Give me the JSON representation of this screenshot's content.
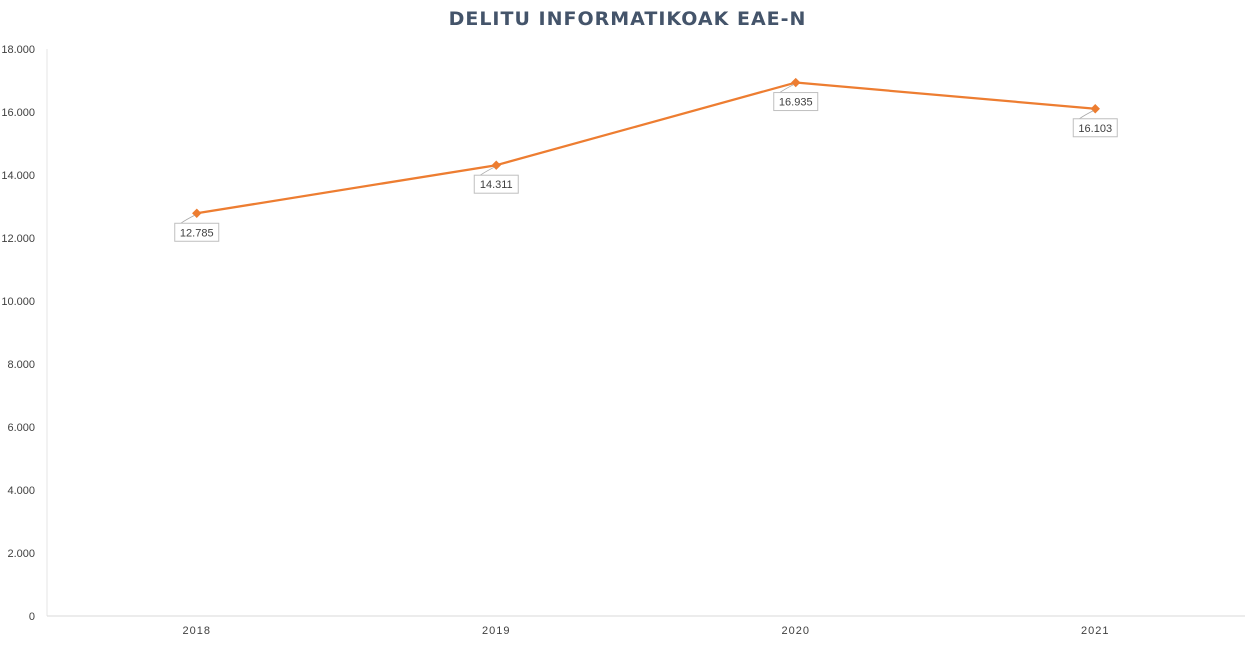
{
  "chart_data": {
    "type": "line",
    "title": "DELITU INFORMATIKOAK EAE-N",
    "categories": [
      "2018",
      "2019",
      "2020",
      "2021"
    ],
    "series": [
      {
        "values": [
          12785,
          14311,
          16935,
          16103
        ],
        "labels": [
          "12.785",
          "14.311",
          "16.935",
          "16.103"
        ]
      }
    ],
    "ylim": [
      0,
      18000
    ],
    "yticks": [
      0,
      2000,
      4000,
      6000,
      8000,
      10000,
      12000,
      14000,
      16000,
      18000
    ],
    "ytick_labels": [
      "0",
      "2.000",
      "4.000",
      "6.000",
      "8.000",
      "10.000",
      "12.000",
      "14.000",
      "16.000",
      "18.000"
    ],
    "xlabel": "",
    "ylabel": "",
    "grid": false,
    "legend": "none",
    "line_color": "#ed7d31",
    "title_color": "#44546a"
  }
}
